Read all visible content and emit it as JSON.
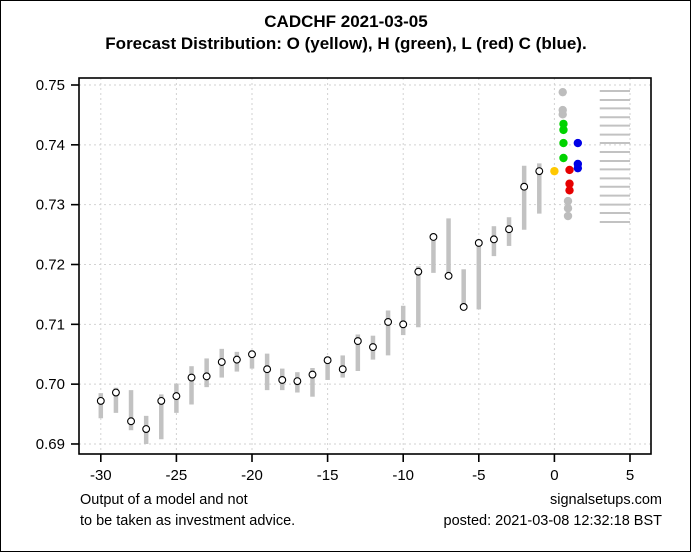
{
  "title": "CADCHF 2021-03-05",
  "subtitle": "Forecast Distribution: O (yellow), H (green), L (red) C (blue).",
  "footer": {
    "disclaimer_line1": "Output of a model and not",
    "disclaimer_line2": "to be taken as investment advice.",
    "site": "signalsetups.com",
    "posted": "posted: 2021-03-08 12:32:18 BST"
  },
  "colors": {
    "open_yellow": "#ffc800",
    "high_green": "#00d300",
    "low_red": "#e60000",
    "close_blue": "#0000e6",
    "history_gray": "#c2c2c2",
    "outlier_gray": "#bdbdbd",
    "grid_gray": "#d2d2d2",
    "axis_black": "#000000"
  },
  "chart_data": {
    "type": "scatter",
    "title": "CADCHF 2021-03-05",
    "subtitle": "Forecast Distribution: O (yellow), H (green), L (red) C (blue).",
    "xlabel": "",
    "ylabel": "",
    "grid": true,
    "xlim": [
      -31.5,
      6.4
    ],
    "ylim": [
      0.6885,
      0.7512
    ],
    "x_ticks": [
      {
        "value": -30,
        "label": "-30"
      },
      {
        "value": -25,
        "label": "-25"
      },
      {
        "value": -20,
        "label": "-20"
      },
      {
        "value": -15,
        "label": "-15"
      },
      {
        "value": -10,
        "label": "-10"
      },
      {
        "value": -5,
        "label": "-5"
      },
      {
        "value": 0,
        "label": "0"
      },
      {
        "value": 5,
        "label": "5"
      }
    ],
    "y_ticks": [
      {
        "value": 0.75,
        "label": "0.75"
      },
      {
        "value": 0.74,
        "label": "0.74"
      },
      {
        "value": 0.73,
        "label": "0.73"
      },
      {
        "value": 0.72,
        "label": "0.72"
      },
      {
        "value": 0.71,
        "label": "0.71"
      },
      {
        "value": 0.7,
        "label": "0.70"
      },
      {
        "value": 0.69,
        "label": "0.69"
      }
    ],
    "history_bars": [
      {
        "x": -30,
        "high": 0.6985,
        "low": 0.6943,
        "close": 0.6972
      },
      {
        "x": -29,
        "high": 0.6994,
        "low": 0.6952,
        "close": 0.6986
      },
      {
        "x": -28,
        "high": 0.699,
        "low": 0.6923,
        "close": 0.6938
      },
      {
        "x": -27,
        "high": 0.6947,
        "low": 0.69,
        "close": 0.6925
      },
      {
        "x": -26,
        "high": 0.6983,
        "low": 0.6908,
        "close": 0.6972
      },
      {
        "x": -25,
        "high": 0.7001,
        "low": 0.6952,
        "close": 0.698
      },
      {
        "x": -24,
        "high": 0.703,
        "low": 0.6966,
        "close": 0.7011
      },
      {
        "x": -23,
        "high": 0.7043,
        "low": 0.6995,
        "close": 0.7013
      },
      {
        "x": -22,
        "high": 0.7059,
        "low": 0.7011,
        "close": 0.7037
      },
      {
        "x": -21,
        "high": 0.7054,
        "low": 0.7021,
        "close": 0.7041
      },
      {
        "x": -20,
        "high": 0.7056,
        "low": 0.7026,
        "close": 0.705
      },
      {
        "x": -19,
        "high": 0.7051,
        "low": 0.699,
        "close": 0.7025
      },
      {
        "x": -18,
        "high": 0.7026,
        "low": 0.699,
        "close": 0.7007
      },
      {
        "x": -17,
        "high": 0.702,
        "low": 0.6986,
        "close": 0.7005
      },
      {
        "x": -16,
        "high": 0.7027,
        "low": 0.6979,
        "close": 0.7016
      },
      {
        "x": -15,
        "high": 0.7045,
        "low": 0.7007,
        "close": 0.704
      },
      {
        "x": -14,
        "high": 0.7048,
        "low": 0.7011,
        "close": 0.7025
      },
      {
        "x": -13,
        "high": 0.7083,
        "low": 0.7022,
        "close": 0.7072
      },
      {
        "x": -12,
        "high": 0.7081,
        "low": 0.7041,
        "close": 0.7062
      },
      {
        "x": -11,
        "high": 0.7123,
        "low": 0.7048,
        "close": 0.7104
      },
      {
        "x": -10,
        "high": 0.7131,
        "low": 0.7082,
        "close": 0.71
      },
      {
        "x": -9,
        "high": 0.7197,
        "low": 0.7095,
        "close": 0.7188
      },
      {
        "x": -8,
        "high": 0.724,
        "low": 0.7186,
        "close": 0.7246
      },
      {
        "x": -7,
        "high": 0.7277,
        "low": 0.7178,
        "close": 0.7181
      },
      {
        "x": -6,
        "high": 0.7192,
        "low": 0.7125,
        "close": 0.7129
      },
      {
        "x": -5,
        "high": 0.7234,
        "low": 0.7125,
        "close": 0.7236
      },
      {
        "x": -4,
        "high": 0.7264,
        "low": 0.7214,
        "close": 0.7242
      },
      {
        "x": -3,
        "high": 0.7279,
        "low": 0.7231,
        "close": 0.7259
      },
      {
        "x": -2,
        "high": 0.7365,
        "low": 0.7258,
        "close": 0.733
      },
      {
        "x": -1,
        "high": 0.7369,
        "low": 0.7285,
        "close": 0.7356
      }
    ],
    "forecast_dots": {
      "open_yellow": [
        {
          "x": 0.0,
          "y": 0.7356
        }
      ],
      "high_green": [
        {
          "x": 0.6,
          "y": 0.7435
        },
        {
          "x": 0.6,
          "y": 0.7425
        },
        {
          "x": 0.6,
          "y": 0.7403
        },
        {
          "x": 0.6,
          "y": 0.7378
        }
      ],
      "low_red": [
        {
          "x": 1.0,
          "y": 0.7358
        },
        {
          "x": 1.0,
          "y": 0.7335
        },
        {
          "x": 1.0,
          "y": 0.7324
        }
      ],
      "close_blue": [
        {
          "x": 1.55,
          "y": 0.7403
        },
        {
          "x": 1.55,
          "y": 0.7368
        },
        {
          "x": 1.55,
          "y": 0.7361
        }
      ],
      "outlier_gray": [
        {
          "x": 0.55,
          "y": 0.7488
        },
        {
          "x": 0.55,
          "y": 0.7458
        },
        {
          "x": 0.55,
          "y": 0.7451
        },
        {
          "x": 0.9,
          "y": 0.7306
        },
        {
          "x": 0.9,
          "y": 0.7294
        },
        {
          "x": 0.9,
          "y": 0.7281
        }
      ]
    },
    "distribution_lines": {
      "x_start": 3.0,
      "x_end": 5.0,
      "values": [
        0.749,
        0.7475,
        0.7461,
        0.7446,
        0.7432,
        0.7417,
        0.7403,
        0.7388,
        0.7373,
        0.7359,
        0.7344,
        0.733,
        0.7315,
        0.73,
        0.7286,
        0.7271
      ]
    }
  }
}
